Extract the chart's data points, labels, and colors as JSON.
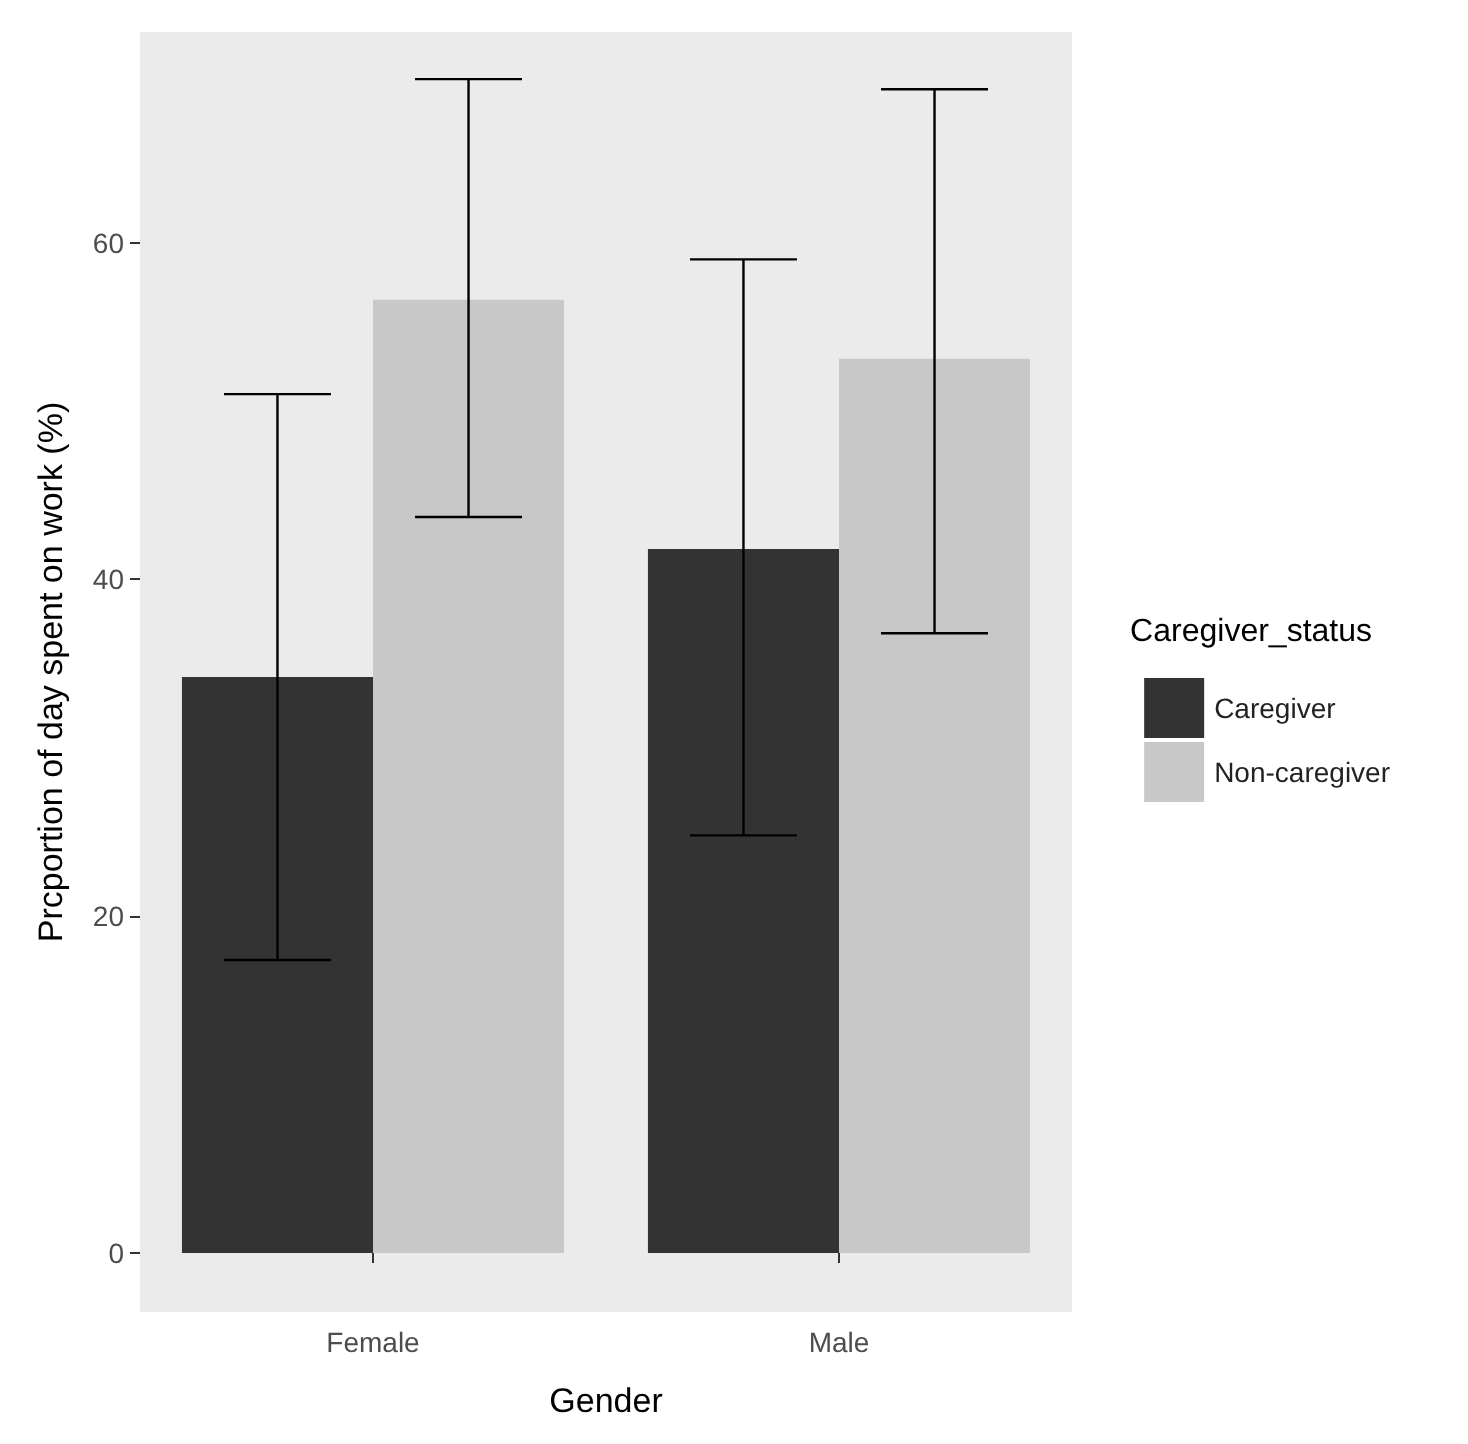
{
  "chart_data": {
    "type": "bar",
    "xlabel": "Gender",
    "ylabel": "Prcportion of day spent on work (%)",
    "legend_title": "Caregiver_status",
    "categories": [
      "Female",
      "Male"
    ],
    "series": [
      {
        "name": "Caregiver",
        "color": "#333333",
        "values": [
          34.2,
          41.8
        ],
        "errors": [
          [
            17.4,
            51.0
          ],
          [
            24.8,
            59.0
          ]
        ]
      },
      {
        "name": "Non-caregiver",
        "color": "#c8c8c8",
        "values": [
          56.6,
          53.1
        ],
        "errors": [
          [
            43.7,
            69.7
          ],
          [
            36.8,
            69.1
          ]
        ]
      }
    ],
    "ylim": [
      -3.5,
      72.5
    ],
    "yticks": [
      0,
      20,
      40,
      60
    ],
    "grid": false,
    "legend": "right"
  }
}
